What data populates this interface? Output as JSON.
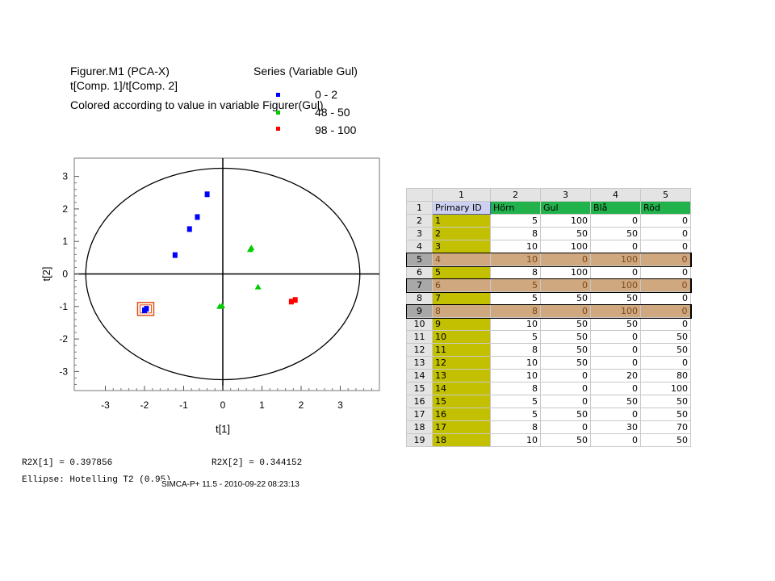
{
  "header": {
    "line1": "Figurer.M1 (PCA-X)",
    "line2": "t[Comp. 1]/t[Comp. 2]",
    "line3": "Colored according to value in variable Figurer(Gul)",
    "legend_title": "Series (Variable Gul)",
    "legend": [
      {
        "label": "0 - 2",
        "color": "#0000ff"
      },
      {
        "label": "48 - 50",
        "color": "#00cc00"
      },
      {
        "label": "98 - 100",
        "color": "#ff0000"
      }
    ]
  },
  "chart_data": {
    "type": "scatter",
    "xlabel": "t[1]",
    "ylabel": "t[2]",
    "xlim": [
      -3.8,
      3.8
    ],
    "ylim": [
      -3.5,
      3.5
    ],
    "xticks": [
      "-3",
      "-2",
      "-1",
      "0",
      "1",
      "2",
      "3"
    ],
    "yticks": [
      "3",
      "2",
      "1",
      "0",
      "-1",
      "-2",
      "-3"
    ],
    "ellipse": {
      "rx": 3.5,
      "ry": 3.25
    },
    "series": [
      {
        "name": "0 - 2",
        "color": "#0000ff",
        "marker": "square",
        "points": [
          [
            -0.4,
            2.45
          ],
          [
            -0.65,
            1.75
          ],
          [
            -0.85,
            1.38
          ],
          [
            -1.22,
            0.58
          ],
          [
            -1.95,
            -1.07
          ],
          [
            -2.0,
            -1.12
          ]
        ]
      },
      {
        "name": "48 - 50",
        "color": "#00cc00",
        "marker": "triangle",
        "points": [
          [
            0.7,
            0.75
          ],
          [
            0.73,
            0.8
          ],
          [
            0.9,
            -0.4
          ],
          [
            -0.08,
            -1.0
          ],
          [
            -0.02,
            -0.98
          ]
        ]
      },
      {
        "name": "98 - 100",
        "color": "#ff0000",
        "marker": "square",
        "points": [
          [
            1.75,
            -0.85
          ],
          [
            1.85,
            -0.8
          ]
        ]
      }
    ],
    "highlight_box": {
      "x": -1.97,
      "y": -1.1
    }
  },
  "footer": {
    "r2x1": "R2X[1] = 0.397856",
    "r2x2": "R2X[2] = 0.344152",
    "ellipse": "Ellipse: Hotelling T2 (0.95)",
    "stamp": "SIMCA-P+ 11.5 - 2010-09-22 08:23:13"
  },
  "table": {
    "col_numbers": [
      "1",
      "2",
      "3",
      "4",
      "5"
    ],
    "headers": [
      "Primary ID",
      "Hörn",
      "Gul",
      "Blå",
      "Röd"
    ],
    "rows": [
      {
        "n": "2",
        "id": "1",
        "v": [
          "5",
          "100",
          "0",
          "0"
        ]
      },
      {
        "n": "3",
        "id": "2",
        "v": [
          "8",
          "50",
          "50",
          "0"
        ]
      },
      {
        "n": "4",
        "id": "3",
        "v": [
          "10",
          "100",
          "0",
          "0"
        ]
      },
      {
        "n": "5",
        "id": "4",
        "v": [
          "10",
          "0",
          "100",
          "0"
        ],
        "sel": true
      },
      {
        "n": "6",
        "id": "5",
        "v": [
          "8",
          "100",
          "0",
          "0"
        ]
      },
      {
        "n": "7",
        "id": "6",
        "v": [
          "5",
          "0",
          "100",
          "0"
        ],
        "sel": true
      },
      {
        "n": "8",
        "id": "7",
        "v": [
          "5",
          "50",
          "50",
          "0"
        ]
      },
      {
        "n": "9",
        "id": "8",
        "v": [
          "8",
          "0",
          "100",
          "0"
        ],
        "sel": true
      },
      {
        "n": "10",
        "id": "9",
        "v": [
          "10",
          "50",
          "50",
          "0"
        ]
      },
      {
        "n": "11",
        "id": "10",
        "v": [
          "5",
          "50",
          "0",
          "50"
        ]
      },
      {
        "n": "12",
        "id": "11",
        "v": [
          "8",
          "50",
          "0",
          "50"
        ]
      },
      {
        "n": "13",
        "id": "12",
        "v": [
          "10",
          "50",
          "0",
          "0"
        ]
      },
      {
        "n": "14",
        "id": "13",
        "v": [
          "10",
          "0",
          "20",
          "80"
        ]
      },
      {
        "n": "15",
        "id": "14",
        "v": [
          "8",
          "0",
          "0",
          "100"
        ]
      },
      {
        "n": "16",
        "id": "15",
        "v": [
          "5",
          "0",
          "50",
          "50"
        ]
      },
      {
        "n": "17",
        "id": "16",
        "v": [
          "5",
          "50",
          "0",
          "50"
        ]
      },
      {
        "n": "18",
        "id": "17",
        "v": [
          "8",
          "0",
          "30",
          "70"
        ]
      },
      {
        "n": "19",
        "id": "18",
        "v": [
          "10",
          "50",
          "0",
          "50"
        ]
      }
    ]
  }
}
